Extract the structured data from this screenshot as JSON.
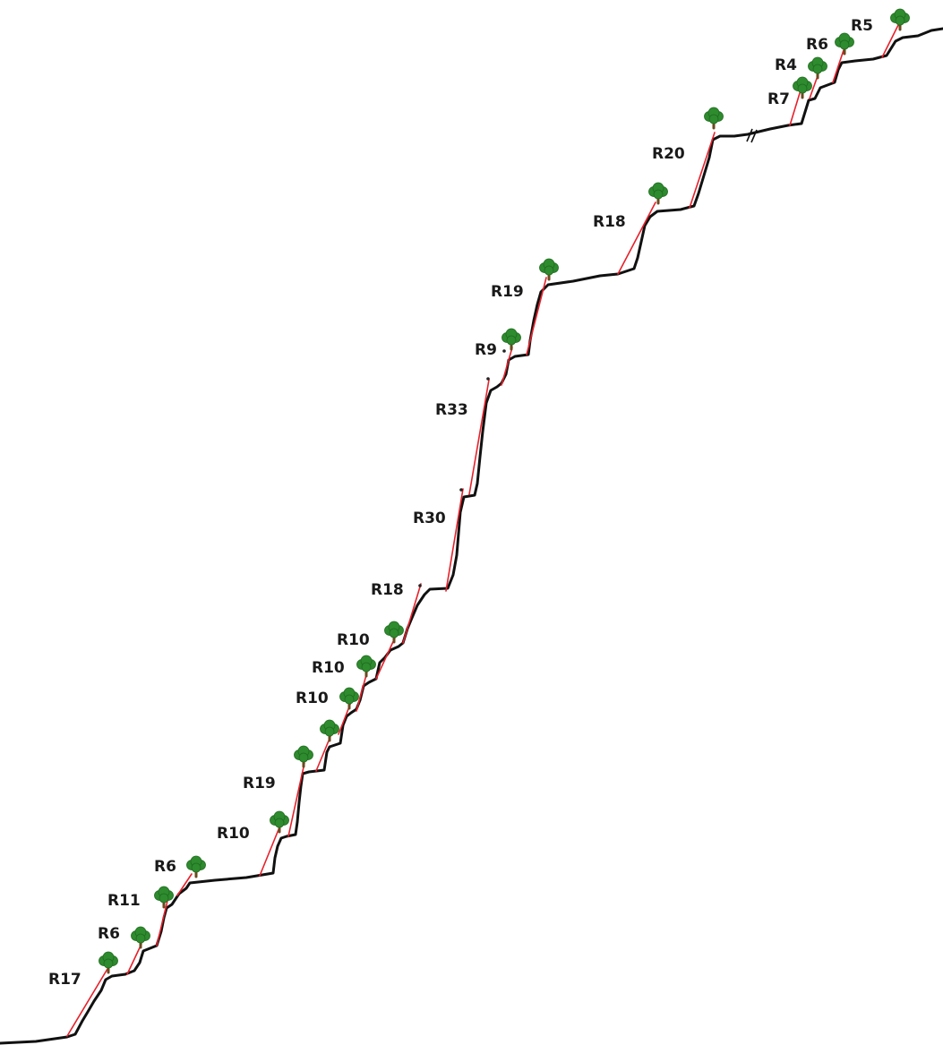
{
  "diagram": {
    "colors": {
      "profile": "#111111",
      "fit_line": "#e8202a",
      "tree_canopy": "#2e8b2e",
      "tree_trunk": "#6b4a1f",
      "label": "#1a1a1a"
    },
    "icons": [
      "tree-icon",
      "axis-break-mark"
    ],
    "segments": [
      {
        "label": "R17",
        "has_tree": true
      },
      {
        "label": "R6",
        "has_tree": true
      },
      {
        "label": "R11",
        "has_tree": true
      },
      {
        "label": "R6",
        "has_tree": true
      },
      {
        "label": "R10",
        "has_tree": true
      },
      {
        "label": "R19",
        "has_tree": true
      },
      {
        "label": "",
        "has_tree": true
      },
      {
        "label": "R10",
        "has_tree": true
      },
      {
        "label": "R10",
        "has_tree": true
      },
      {
        "label": "R10",
        "has_tree": true
      },
      {
        "label": "R18",
        "has_tree": false
      },
      {
        "label": "R30",
        "has_tree": false
      },
      {
        "label": "R33",
        "has_tree": false
      },
      {
        "label": "R9",
        "has_tree": true
      },
      {
        "label": "R19",
        "has_tree": true
      },
      {
        "label": "R18",
        "has_tree": true
      },
      {
        "label": "R20",
        "has_tree": true
      },
      {
        "label": "R7",
        "has_tree": true
      },
      {
        "label": "R4",
        "has_tree": true
      },
      {
        "label": "R6",
        "has_tree": true
      },
      {
        "label": "R5",
        "has_tree": true
      }
    ]
  }
}
